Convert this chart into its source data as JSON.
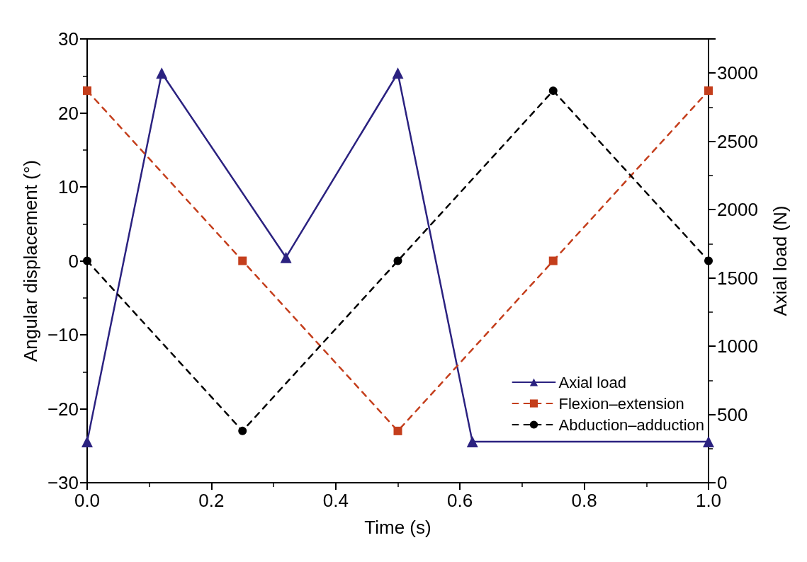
{
  "chart_data": {
    "type": "line",
    "xlabel": "Time (s)",
    "ylabel": "Angular displacement (°)",
    "y2label": "Axial load (N)",
    "xlim": [
      0,
      1
    ],
    "xticks": [
      {
        "value": 0,
        "label": "0.0"
      },
      0.2,
      0.4,
      0.6,
      0.8,
      {
        "value": 1,
        "label": "1.0"
      }
    ],
    "ylim": [
      -30,
      30
    ],
    "yticks": [
      {
        "value": -30,
        "label": "−30"
      },
      {
        "value": -20,
        "label": "−20"
      },
      {
        "value": -10,
        "label": "−10"
      },
      0,
      10,
      20,
      30
    ],
    "y2lim": [
      0,
      3250
    ],
    "y2ticks": [
      0,
      500,
      1000,
      1500,
      2000,
      2500,
      3000
    ],
    "grid": false,
    "legend": "bottom right",
    "series": [
      {
        "name": "Axial load",
        "color": "#2b2280",
        "axis": "y2",
        "marker": "triangle",
        "line_style": "solid",
        "x": [
          0,
          0.12,
          0.32,
          0.5,
          0.62,
          1
        ],
        "values": [
          300,
          3000,
          1650,
          3000,
          300,
          300
        ]
      },
      {
        "name": "Flexion–extension",
        "color": "#c43e1c",
        "marker": "square",
        "line_style": "dashed",
        "x": [
          0,
          0.25,
          0.5,
          0.75,
          1
        ],
        "values": [
          23,
          0,
          -23,
          0,
          23
        ]
      },
      {
        "name": "Abduction–adduction",
        "color": "#000000",
        "marker": "circle",
        "line_style": "dashed",
        "x": [
          0,
          0.25,
          0.5,
          0.75,
          1
        ],
        "values": [
          0,
          -23,
          0,
          23,
          0
        ]
      }
    ]
  }
}
